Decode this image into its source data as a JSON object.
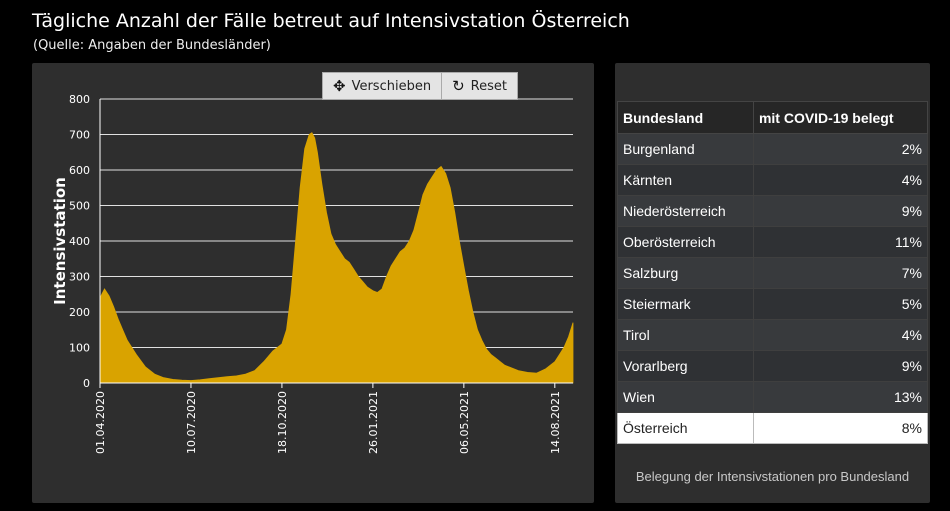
{
  "header": {
    "title": "Tägliche Anzahl der Fälle betreut auf Intensivstation Österreich",
    "subtitle": "(Quelle: Angaben der Bundesländer)"
  },
  "toolbar": {
    "pan_label": "Verschieben",
    "pan_icon": "move-arrows-icon",
    "reset_label": "Reset",
    "reset_icon": "reset-arrow-icon"
  },
  "chart_data": {
    "type": "area",
    "ylabel": "Intensivstation",
    "xlabel": "",
    "ylim": [
      0,
      800
    ],
    "yticks": [
      0,
      100,
      200,
      300,
      400,
      500,
      600,
      700,
      800
    ],
    "x_start": "01.04.2020",
    "xticks": [
      "01.04.2020",
      "10.07.2020",
      "18.10.2020",
      "26.01.2021",
      "06.05.2021",
      "14.08.2021"
    ],
    "grid": true,
    "series": [
      {
        "color": "#d9a300",
        "x": [
          "01.04.2020",
          "06.04.2020",
          "11.04.2020",
          "16.04.2020",
          "21.04.2020",
          "26.04.2020",
          "01.05.2020",
          "11.05.2020",
          "21.05.2020",
          "31.05.2020",
          "10.06.2020",
          "20.06.2020",
          "30.06.2020",
          "10.07.2020",
          "20.07.2020",
          "30.07.2020",
          "09.08.2020",
          "19.08.2020",
          "29.08.2020",
          "08.09.2020",
          "18.09.2020",
          "28.09.2020",
          "08.10.2020",
          "18.10.2020",
          "23.10.2020",
          "28.10.2020",
          "02.11.2020",
          "07.11.2020",
          "12.11.2020",
          "17.11.2020",
          "20.11.2020",
          "23.11.2020",
          "26.11.2020",
          "01.12.2020",
          "06.12.2020",
          "11.12.2020",
          "16.12.2020",
          "21.12.2020",
          "26.12.2020",
          "31.12.2020",
          "05.01.2021",
          "10.01.2021",
          "15.01.2021",
          "20.01.2021",
          "26.01.2021",
          "31.01.2021",
          "05.02.2021",
          "10.02.2021",
          "15.02.2021",
          "20.02.2021",
          "25.02.2021",
          "02.03.2021",
          "07.03.2021",
          "12.03.2021",
          "17.03.2021",
          "22.03.2021",
          "27.03.2021",
          "01.04.2021",
          "06.04.2021",
          "11.04.2021",
          "16.04.2021",
          "21.04.2021",
          "26.04.2021",
          "01.05.2021",
          "06.05.2021",
          "11.05.2021",
          "16.05.2021",
          "21.05.2021",
          "26.05.2021",
          "31.05.2021",
          "05.06.2021",
          "10.06.2021",
          "15.06.2021",
          "20.06.2021",
          "25.06.2021",
          "05.07.2021",
          "15.07.2021",
          "25.07.2021",
          "04.08.2021",
          "14.08.2021",
          "19.08.2021",
          "24.08.2021",
          "29.08.2021",
          "03.09.2021"
        ],
        "values": [
          240,
          265,
          245,
          215,
          180,
          150,
          120,
          80,
          45,
          25,
          15,
          10,
          8,
          7,
          9,
          12,
          15,
          18,
          20,
          25,
          35,
          60,
          90,
          110,
          150,
          250,
          400,
          550,
          660,
          700,
          705,
          690,
          650,
          560,
          480,
          420,
          390,
          370,
          350,
          340,
          320,
          300,
          285,
          270,
          260,
          255,
          265,
          300,
          330,
          350,
          370,
          380,
          400,
          430,
          480,
          530,
          560,
          580,
          600,
          610,
          590,
          550,
          480,
          400,
          330,
          260,
          200,
          150,
          120,
          95,
          80,
          70,
          60,
          50,
          45,
          35,
          30,
          28,
          40,
          60,
          80,
          100,
          130,
          170
        ]
      }
    ]
  },
  "table": {
    "headers": [
      "Bundesland",
      "mit COVID-19 belegt"
    ],
    "rows": [
      [
        "Burgenland",
        "2%"
      ],
      [
        "Kärnten",
        "4%"
      ],
      [
        "Niederösterreich",
        "9%"
      ],
      [
        "Oberösterreich",
        "11%"
      ],
      [
        "Salzburg",
        "7%"
      ],
      [
        "Steiermark",
        "5%"
      ],
      [
        "Tirol",
        "4%"
      ],
      [
        "Vorarlberg",
        "9%"
      ],
      [
        "Wien",
        "13%"
      ]
    ],
    "total": [
      "Österreich",
      "8%"
    ],
    "caption": "Belegung der Intensivstationen pro Bundesland"
  }
}
